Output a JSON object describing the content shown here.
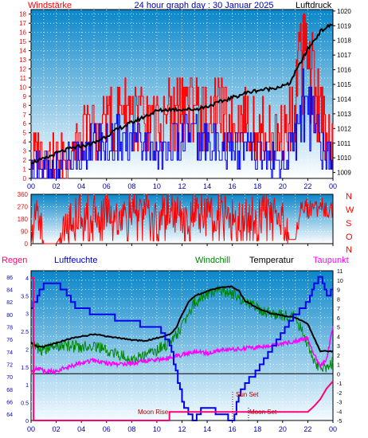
{
  "header": {
    "left_label": "Windstärke",
    "title": "24 hour graph day : 30 Januar 2025",
    "right_label": "Luftdruck"
  },
  "colors": {
    "red": "#ff0000",
    "blue": "#0000ee",
    "black": "#000000",
    "green": "#008800",
    "magenta": "#ff00ff",
    "pink": "#ff0077",
    "navy": "#0000aa",
    "plot_top": "#0b86c9",
    "plot_bottom": "#ffffff"
  },
  "chart_data": [
    {
      "type": "line",
      "title": "24 hour graph day : 30 Januar 2025",
      "ylabel": "Windstärke",
      "y2label": "Luftdruck",
      "x_ticks": [
        "00",
        "02",
        "04",
        "06",
        "08",
        "10",
        "12",
        "14",
        "16",
        "18",
        "20",
        "22",
        "00"
      ],
      "y_ticks": [
        0,
        1,
        2,
        3,
        4,
        5,
        6,
        7,
        8,
        9,
        10,
        11,
        12,
        13,
        14,
        15,
        16,
        17,
        18
      ],
      "y2_ticks": [
        1009,
        1010,
        1011,
        1012,
        1013,
        1014,
        1015,
        1016,
        1017,
        1018,
        1019,
        1020
      ],
      "ylim": [
        0,
        18.5
      ],
      "y2lim": [
        1008.6,
        1020.1
      ],
      "grid": true,
      "series": [
        {
          "name": "Luftdruck",
          "x": [
            0,
            1,
            2,
            3,
            4,
            5,
            6,
            7,
            8,
            9,
            10,
            11,
            12,
            13,
            14,
            15,
            16,
            17,
            18,
            19,
            20,
            20.5,
            21,
            21.5,
            22,
            22.5,
            23,
            23.5,
            24
          ],
          "values": [
            1009.7,
            1009.9,
            1010.3,
            1010.6,
            1010.8,
            1011.0,
            1011.5,
            1012.0,
            1012.4,
            1012.8,
            1013.2,
            1013.3,
            1013.3,
            1013.3,
            1013.5,
            1013.8,
            1014.1,
            1014.4,
            1014.6,
            1014.7,
            1014.9,
            1015.0,
            1015.8,
            1016.6,
            1017.4,
            1018.0,
            1018.6,
            1018.9,
            1019.1
          ]
        },
        {
          "name": "Windstärke (Böen)",
          "x": [
            0,
            1,
            2,
            3,
            4,
            5,
            6,
            7,
            8,
            9,
            10,
            11,
            12,
            13,
            14,
            15,
            16,
            17,
            18,
            19,
            20,
            21,
            21.5,
            22,
            22.5,
            23,
            24
          ],
          "values": [
            2,
            3,
            2,
            3,
            5,
            6,
            7,
            8,
            8,
            7,
            6,
            8,
            9,
            9,
            7,
            8,
            6,
            7,
            6,
            5,
            5,
            9,
            17,
            15,
            12,
            8,
            3
          ]
        },
        {
          "name": "Windstärke (Mittel)",
          "x": [
            0,
            1,
            2,
            3,
            4,
            5,
            6,
            7,
            8,
            9,
            10,
            11,
            12,
            13,
            14,
            15,
            16,
            17,
            18,
            19,
            20,
            21,
            21.5,
            22,
            22.5,
            23,
            24
          ],
          "values": [
            1,
            1,
            1,
            2,
            3,
            4,
            4,
            5,
            4,
            4,
            3,
            4,
            5,
            5,
            4,
            4,
            3,
            4,
            3,
            2,
            2,
            5,
            11,
            9,
            7,
            4,
            1
          ]
        }
      ]
    },
    {
      "type": "line",
      "title": "",
      "x_ticks": [
        "00",
        "02",
        "04",
        "06",
        "08",
        "10",
        "12",
        "14",
        "16",
        "18",
        "20",
        "22",
        "00"
      ],
      "y_ticks": [
        0,
        90,
        180,
        270,
        360
      ],
      "y2_ticks": [
        "N",
        "W",
        "S",
        "O",
        "N"
      ],
      "ylim": [
        0,
        360
      ],
      "grid": true,
      "series": [
        {
          "name": "Windrichtung",
          "x": [
            0,
            0.5,
            1,
            1.5,
            2,
            3,
            4,
            5,
            6,
            7,
            8,
            9,
            10,
            11,
            12,
            13,
            14,
            15,
            16,
            17,
            18,
            19,
            20,
            20.5,
            21,
            21.5,
            22,
            23,
            24
          ],
          "values": [
            0,
            280,
            0,
            0,
            0,
            150,
            240,
            200,
            260,
            180,
            220,
            250,
            200,
            260,
            180,
            230,
            200,
            250,
            170,
            230,
            210,
            240,
            200,
            30,
            30,
            300,
            250,
            270,
            240
          ]
        }
      ]
    },
    {
      "type": "line",
      "title": "",
      "x_ticks": [
        "00",
        "02",
        "04",
        "06",
        "08",
        "10",
        "12",
        "14",
        "16",
        "18",
        "20",
        "22",
        "00"
      ],
      "left_labels": [
        "Regen",
        "Luftfeuchte"
      ],
      "right_labels": [
        "Windchill",
        "Temperatur",
        "Taupunkt"
      ],
      "humidity_ticks": [
        64,
        66,
        68,
        70,
        72,
        74,
        76,
        78,
        80,
        82,
        84,
        86
      ],
      "rain_ticks": [
        "0",
        "0.5",
        "1",
        "1.5",
        "2",
        "2.5",
        "3",
        "3.5",
        "4"
      ],
      "temp_ticks": [
        -5,
        -4,
        -3,
        -2,
        -1,
        0,
        1,
        2,
        3,
        4,
        5,
        6,
        7,
        8,
        9,
        10,
        11
      ],
      "ylim_temp": [
        -5,
        11
      ],
      "ylim_humidity": [
        63,
        87
      ],
      "ylim_rain": [
        0,
        4.2
      ],
      "grid": true,
      "annotations": [
        "Moon Rise",
        "Sun Set",
        "Moon Set"
      ],
      "series": [
        {
          "name": "Temperatur",
          "x": [
            0,
            0.5,
            1,
            2,
            3,
            4,
            5,
            6,
            7,
            8,
            9,
            10,
            11,
            11.5,
            12,
            12.5,
            13,
            14,
            15,
            16,
            16.5,
            17,
            18,
            19,
            20,
            21,
            22,
            22.5,
            23,
            23.5,
            24
          ],
          "values": [
            3.3,
            2.9,
            2.9,
            3.3,
            3.7,
            4.0,
            4.2,
            4.0,
            3.8,
            3.6,
            3.5,
            3.8,
            4.2,
            4.8,
            6.3,
            7.6,
            8.3,
            8.8,
            9.2,
            9.3,
            8.9,
            7.8,
            7.0,
            6.5,
            6.2,
            6.0,
            5.3,
            3.8,
            2.4,
            2.4,
            2.4
          ]
        },
        {
          "name": "Windchill",
          "x": [
            0,
            0.5,
            1,
            2,
            3,
            4,
            5,
            6,
            7,
            8,
            9,
            10,
            11,
            11.5,
            12,
            12.5,
            13,
            14,
            15,
            16,
            16.5,
            17,
            18,
            19,
            20,
            21,
            22,
            22.5,
            23,
            23.5,
            24
          ],
          "values": [
            3.2,
            2.7,
            2.5,
            3.0,
            3.0,
            2.8,
            3.1,
            2.4,
            2.0,
            1.5,
            1.9,
            2.5,
            3.2,
            4.0,
            5.2,
            6.5,
            7.6,
            8.5,
            9.0,
            8.6,
            8.3,
            7.5,
            7.0,
            6.5,
            6.2,
            6.0,
            3.2,
            1.5,
            0.5,
            0.8,
            1.2
          ]
        },
        {
          "name": "Taupunkt",
          "x": [
            0,
            0.5,
            1,
            2,
            2.5,
            3,
            4,
            5,
            6,
            7,
            8,
            9,
            10,
            11,
            12,
            13,
            14,
            15,
            16,
            17,
            18,
            19,
            20,
            21,
            22,
            22.5,
            23,
            23.5,
            24
          ],
          "values": [
            0.2,
            0.6,
            0.3,
            0.2,
            0.6,
            0.7,
            1.2,
            1.4,
            1.1,
            1.0,
            1.1,
            1.4,
            1.5,
            1.7,
            2.0,
            2.4,
            2.2,
            2.5,
            2.6,
            2.7,
            2.8,
            3.0,
            3.2,
            3.5,
            3.8,
            2.0,
            0.8,
            1.6,
            5.0
          ]
        },
        {
          "name": "Luftfeuchte",
          "x": [
            0,
            0.8,
            1,
            2,
            3,
            3.5,
            4,
            5,
            6,
            7,
            8,
            9,
            10,
            10.5,
            11,
            11.5,
            12,
            12.5,
            13,
            13.5,
            14,
            15,
            16,
            16.5,
            17,
            18,
            19,
            20,
            21,
            22,
            22.5,
            23,
            23.5,
            24
          ],
          "values": [
            81,
            84,
            85,
            85,
            83,
            81,
            81,
            80,
            80,
            79,
            79,
            78,
            78,
            77,
            75,
            71,
            66,
            64,
            63,
            65,
            65,
            64,
            63,
            67,
            69,
            71,
            74,
            77,
            80,
            82,
            85,
            86,
            83,
            84
          ]
        },
        {
          "name": "Regen",
          "x": [
            0,
            0.2,
            0.2,
            0.8,
            0.8,
            11,
            11,
            21.3,
            21.3,
            22,
            22.5,
            23,
            23.5,
            24
          ],
          "values": [
            4.0,
            4.0,
            0.0,
            0.0,
            0.0,
            0.0,
            0.24,
            0.24,
            0.24,
            0.24,
            0.4,
            0.6,
            0.9,
            1.1
          ]
        }
      ]
    }
  ]
}
